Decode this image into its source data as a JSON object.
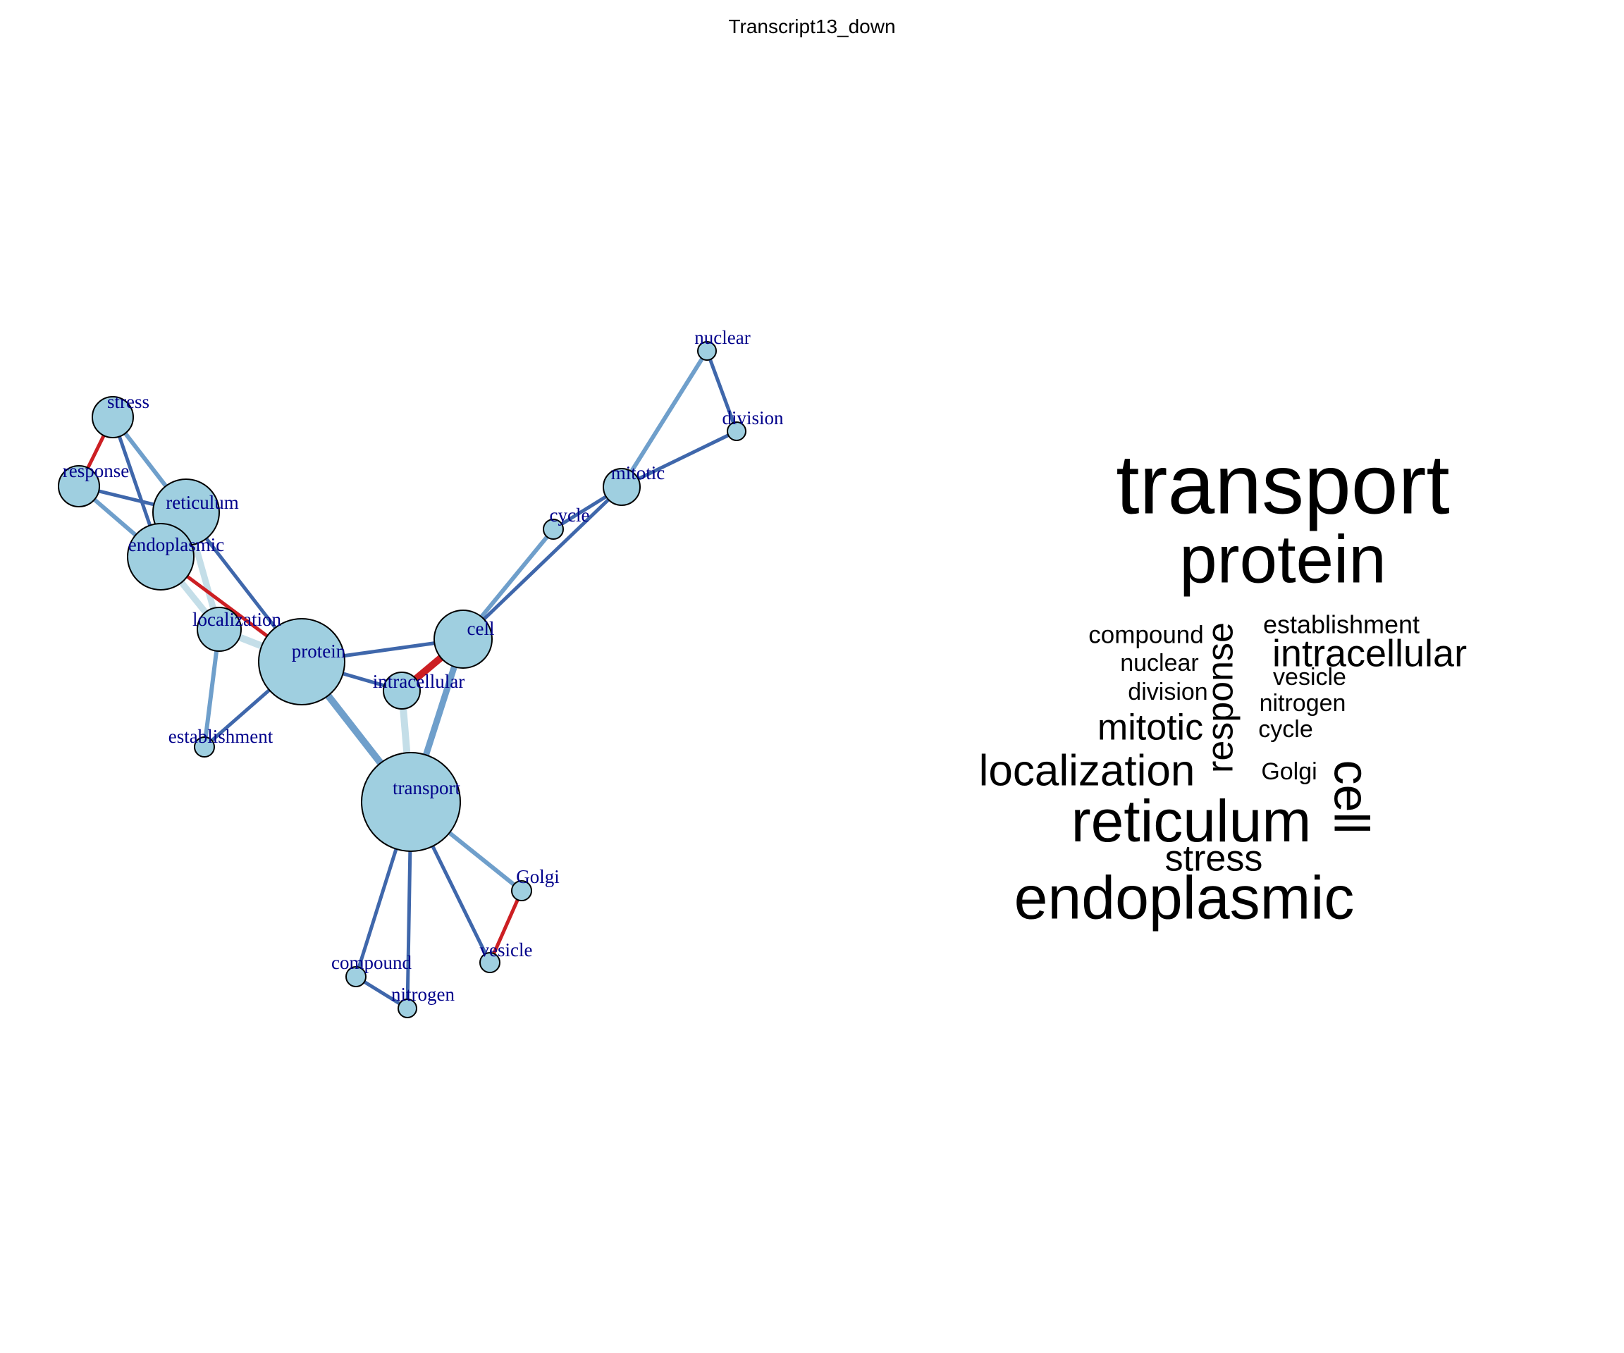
{
  "title": "Transcript13_down",
  "network": {
    "node_color": "#9fcfe0",
    "label_color": "#00008b",
    "edge_colors": {
      "dark_blue": "#3f67ab",
      "mid_blue": "#6f9fcb",
      "light_blue": "#c4dee8",
      "red": "#cc1f23"
    },
    "nodes": [
      {
        "id": "stress",
        "label": "stress"
      },
      {
        "id": "response",
        "label": "response"
      },
      {
        "id": "reticulum",
        "label": "reticulum"
      },
      {
        "id": "endoplasmic",
        "label": "endoplasmic"
      },
      {
        "id": "localization",
        "label": "localization"
      },
      {
        "id": "protein",
        "label": "protein"
      },
      {
        "id": "establishment",
        "label": "establishment"
      },
      {
        "id": "intracellular",
        "label": "intracellular"
      },
      {
        "id": "cell",
        "label": "cell"
      },
      {
        "id": "cycle",
        "label": "cycle"
      },
      {
        "id": "mitotic",
        "label": "mitotic"
      },
      {
        "id": "nuclear",
        "label": "nuclear"
      },
      {
        "id": "division",
        "label": "division"
      },
      {
        "id": "transport",
        "label": "transport"
      },
      {
        "id": "Golgi",
        "label": "Golgi"
      },
      {
        "id": "vesicle",
        "label": "vesicle"
      },
      {
        "id": "compound",
        "label": "compound"
      },
      {
        "id": "nitrogen",
        "label": "nitrogen"
      }
    ],
    "edges": [
      {
        "source": "stress",
        "target": "response",
        "color": "red"
      },
      {
        "source": "stress",
        "target": "reticulum",
        "color": "mid_blue"
      },
      {
        "source": "stress",
        "target": "endoplasmic",
        "color": "dark_blue"
      },
      {
        "source": "response",
        "target": "reticulum",
        "color": "dark_blue"
      },
      {
        "source": "response",
        "target": "endoplasmic",
        "color": "mid_blue"
      },
      {
        "source": "reticulum",
        "target": "endoplasmic",
        "color": "dark_blue"
      },
      {
        "source": "reticulum",
        "target": "protein",
        "color": "dark_blue"
      },
      {
        "source": "reticulum",
        "target": "localization",
        "color": "light_blue"
      },
      {
        "source": "endoplasmic",
        "target": "protein",
        "color": "red"
      },
      {
        "source": "endoplasmic",
        "target": "localization",
        "color": "light_blue"
      },
      {
        "source": "localization",
        "target": "protein",
        "color": "light_blue"
      },
      {
        "source": "localization",
        "target": "establishment",
        "color": "mid_blue"
      },
      {
        "source": "protein",
        "target": "establishment",
        "color": "dark_blue"
      },
      {
        "source": "protein",
        "target": "intracellular",
        "color": "dark_blue"
      },
      {
        "source": "protein",
        "target": "cell",
        "color": "dark_blue"
      },
      {
        "source": "protein",
        "target": "transport",
        "color": "mid_blue"
      },
      {
        "source": "intracellular",
        "target": "cell",
        "color": "red"
      },
      {
        "source": "intracellular",
        "target": "transport",
        "color": "light_blue"
      },
      {
        "source": "cell",
        "target": "transport",
        "color": "mid_blue"
      },
      {
        "source": "cell",
        "target": "cycle",
        "color": "mid_blue"
      },
      {
        "source": "cell",
        "target": "mitotic",
        "color": "dark_blue"
      },
      {
        "source": "cycle",
        "target": "mitotic",
        "color": "dark_blue"
      },
      {
        "source": "mitotic",
        "target": "nuclear",
        "color": "mid_blue"
      },
      {
        "source": "mitotic",
        "target": "division",
        "color": "dark_blue"
      },
      {
        "source": "nuclear",
        "target": "division",
        "color": "dark_blue"
      },
      {
        "source": "transport",
        "target": "Golgi",
        "color": "mid_blue"
      },
      {
        "source": "transport",
        "target": "vesicle",
        "color": "dark_blue"
      },
      {
        "source": "transport",
        "target": "compound",
        "color": "dark_blue"
      },
      {
        "source": "transport",
        "target": "nitrogen",
        "color": "dark_blue"
      },
      {
        "source": "Golgi",
        "target": "vesicle",
        "color": "red"
      },
      {
        "source": "compound",
        "target": "nitrogen",
        "color": "dark_blue"
      }
    ]
  },
  "wordcloud": {
    "words": [
      {
        "text": "transport",
        "rank": 1,
        "orientation": "horizontal"
      },
      {
        "text": "protein",
        "rank": 2,
        "orientation": "horizontal"
      },
      {
        "text": "endoplasmic",
        "rank": 3,
        "orientation": "horizontal"
      },
      {
        "text": "reticulum",
        "rank": 4,
        "orientation": "horizontal"
      },
      {
        "text": "cell",
        "rank": 5,
        "orientation": "vertical"
      },
      {
        "text": "localization",
        "rank": 6,
        "orientation": "horizontal"
      },
      {
        "text": "response",
        "rank": 7,
        "orientation": "vertical"
      },
      {
        "text": "intracellular",
        "rank": 8,
        "orientation": "horizontal"
      },
      {
        "text": "mitotic",
        "rank": 9,
        "orientation": "horizontal"
      },
      {
        "text": "stress",
        "rank": 10,
        "orientation": "horizontal"
      },
      {
        "text": "establishment",
        "rank": 11,
        "orientation": "horizontal"
      },
      {
        "text": "compound",
        "rank": 12,
        "orientation": "horizontal"
      },
      {
        "text": "nuclear",
        "rank": 13,
        "orientation": "horizontal"
      },
      {
        "text": "division",
        "rank": 14,
        "orientation": "horizontal"
      },
      {
        "text": "vesicle",
        "rank": 15,
        "orientation": "horizontal"
      },
      {
        "text": "nitrogen",
        "rank": 16,
        "orientation": "horizontal"
      },
      {
        "text": "cycle",
        "rank": 17,
        "orientation": "horizontal"
      },
      {
        "text": "Golgi",
        "rank": 18,
        "orientation": "horizontal"
      }
    ]
  }
}
